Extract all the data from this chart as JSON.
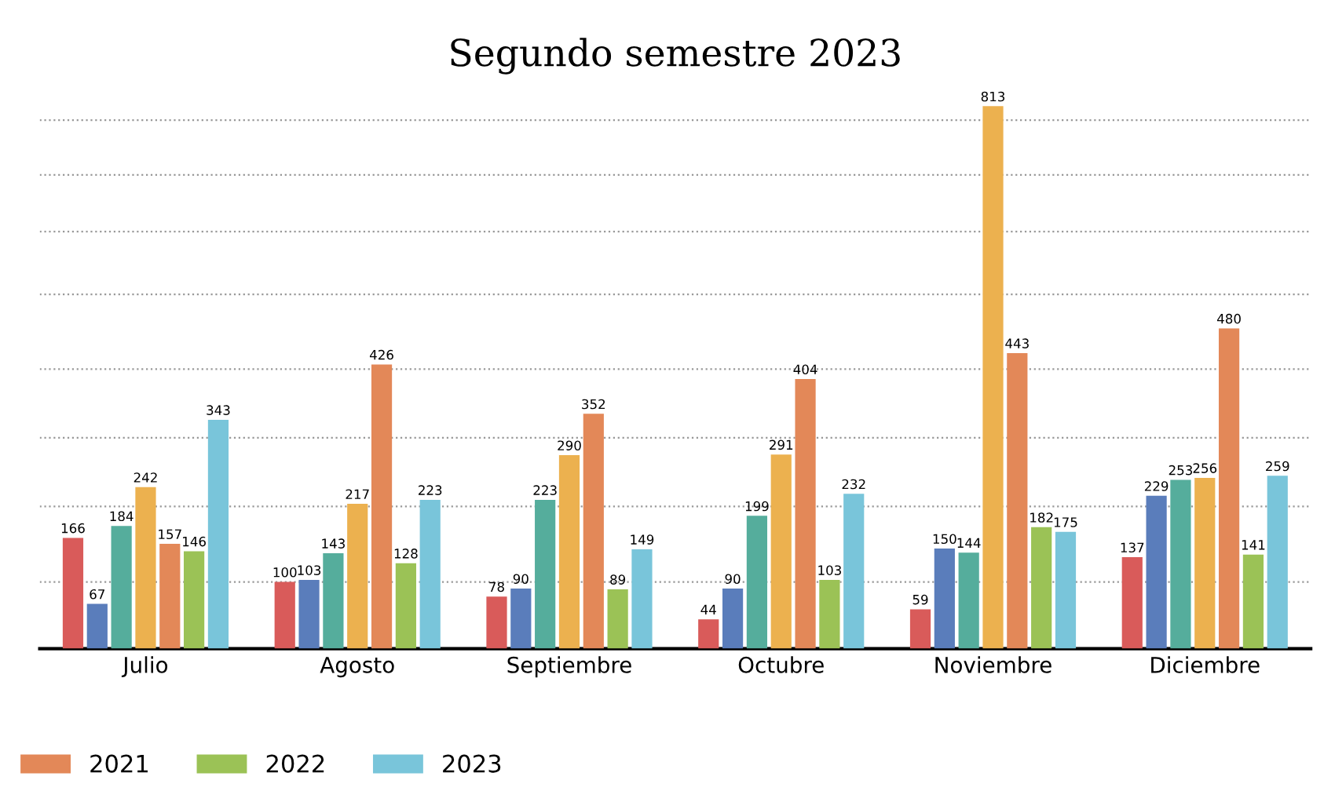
{
  "chart_data": {
    "type": "bar",
    "title": "Segundo semestre 2023",
    "categories": [
      "Julio",
      "Agosto",
      "Septiembre",
      "Octubre",
      "Noviembre",
      "Diciembre"
    ],
    "series": [
      {
        "color": "#d95b5a",
        "values": [
          166,
          100,
          78,
          44,
          59,
          137
        ]
      },
      {
        "color": "#5a7dbb",
        "values": [
          67,
          103,
          90,
          90,
          150,
          229
        ]
      },
      {
        "color": "#55ad9c",
        "values": [
          184,
          143,
          223,
          199,
          144,
          253
        ]
      },
      {
        "color": "#ecb14f",
        "values": [
          242,
          217,
          290,
          291,
          813,
          256
        ]
      },
      {
        "name": "2021",
        "color": "#e38858",
        "values": [
          157,
          426,
          352,
          404,
          443,
          480
        ]
      },
      {
        "name": "2022",
        "color": "#9bc256",
        "values": [
          146,
          128,
          89,
          103,
          182,
          141
        ]
      },
      {
        "name": "2023",
        "color": "#79c5da",
        "values": [
          343,
          223,
          149,
          232,
          175,
          259
        ]
      }
    ],
    "yticks": [
      {
        "value": 100,
        "label": null
      },
      {
        "value": 213,
        "label": null
      },
      {
        "value": 316,
        "label": null
      },
      {
        "value": 419,
        "label": null
      },
      {
        "value": 531,
        "label": null
      },
      {
        "value": 625,
        "label": null
      },
      {
        "value": 710,
        "label": null
      },
      {
        "value": 792,
        "label": null
      }
    ],
    "grid": "y",
    "data_labels": true,
    "legend": "bottom left",
    "tick_labels": "x"
  }
}
